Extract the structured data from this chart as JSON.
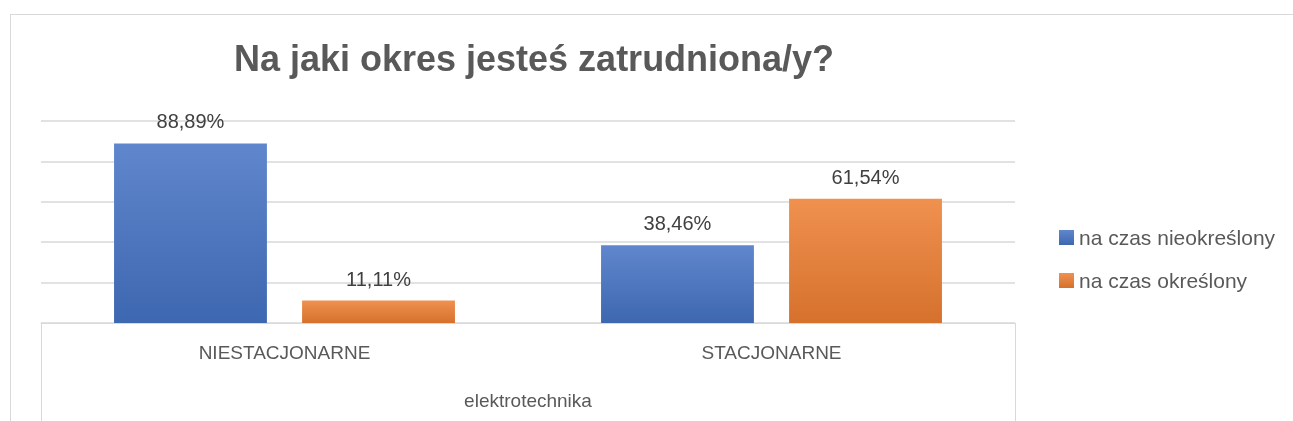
{
  "chart_data": {
    "type": "bar",
    "title": "Na jaki okres jesteś zatrudniona/y?",
    "xlabel": "elektrotechnika",
    "categories": [
      "NIESTACJONARNE",
      "STACJONARNE"
    ],
    "series": [
      {
        "name": "na czas nieokreślony",
        "color": "#4472c4",
        "values": [
          88.89,
          38.46
        ],
        "value_labels": [
          "88,89%",
          "38,46%"
        ]
      },
      {
        "name": "na czas określony",
        "color": "#ed7d31",
        "values": [
          11.11,
          61.54
        ],
        "value_labels": [
          "11,11%",
          "61,54%"
        ]
      }
    ],
    "ylim": [
      0,
      100
    ],
    "yticks": [
      {
        "value": 0,
        "label": null
      },
      {
        "value": 20,
        "label": null
      },
      {
        "value": 40,
        "label": null
      },
      {
        "value": 60,
        "label": null
      },
      {
        "value": 80,
        "label": null
      },
      {
        "value": 100,
        "label": null
      }
    ],
    "tick_labels": "x",
    "grid": "y",
    "legend": "right"
  }
}
